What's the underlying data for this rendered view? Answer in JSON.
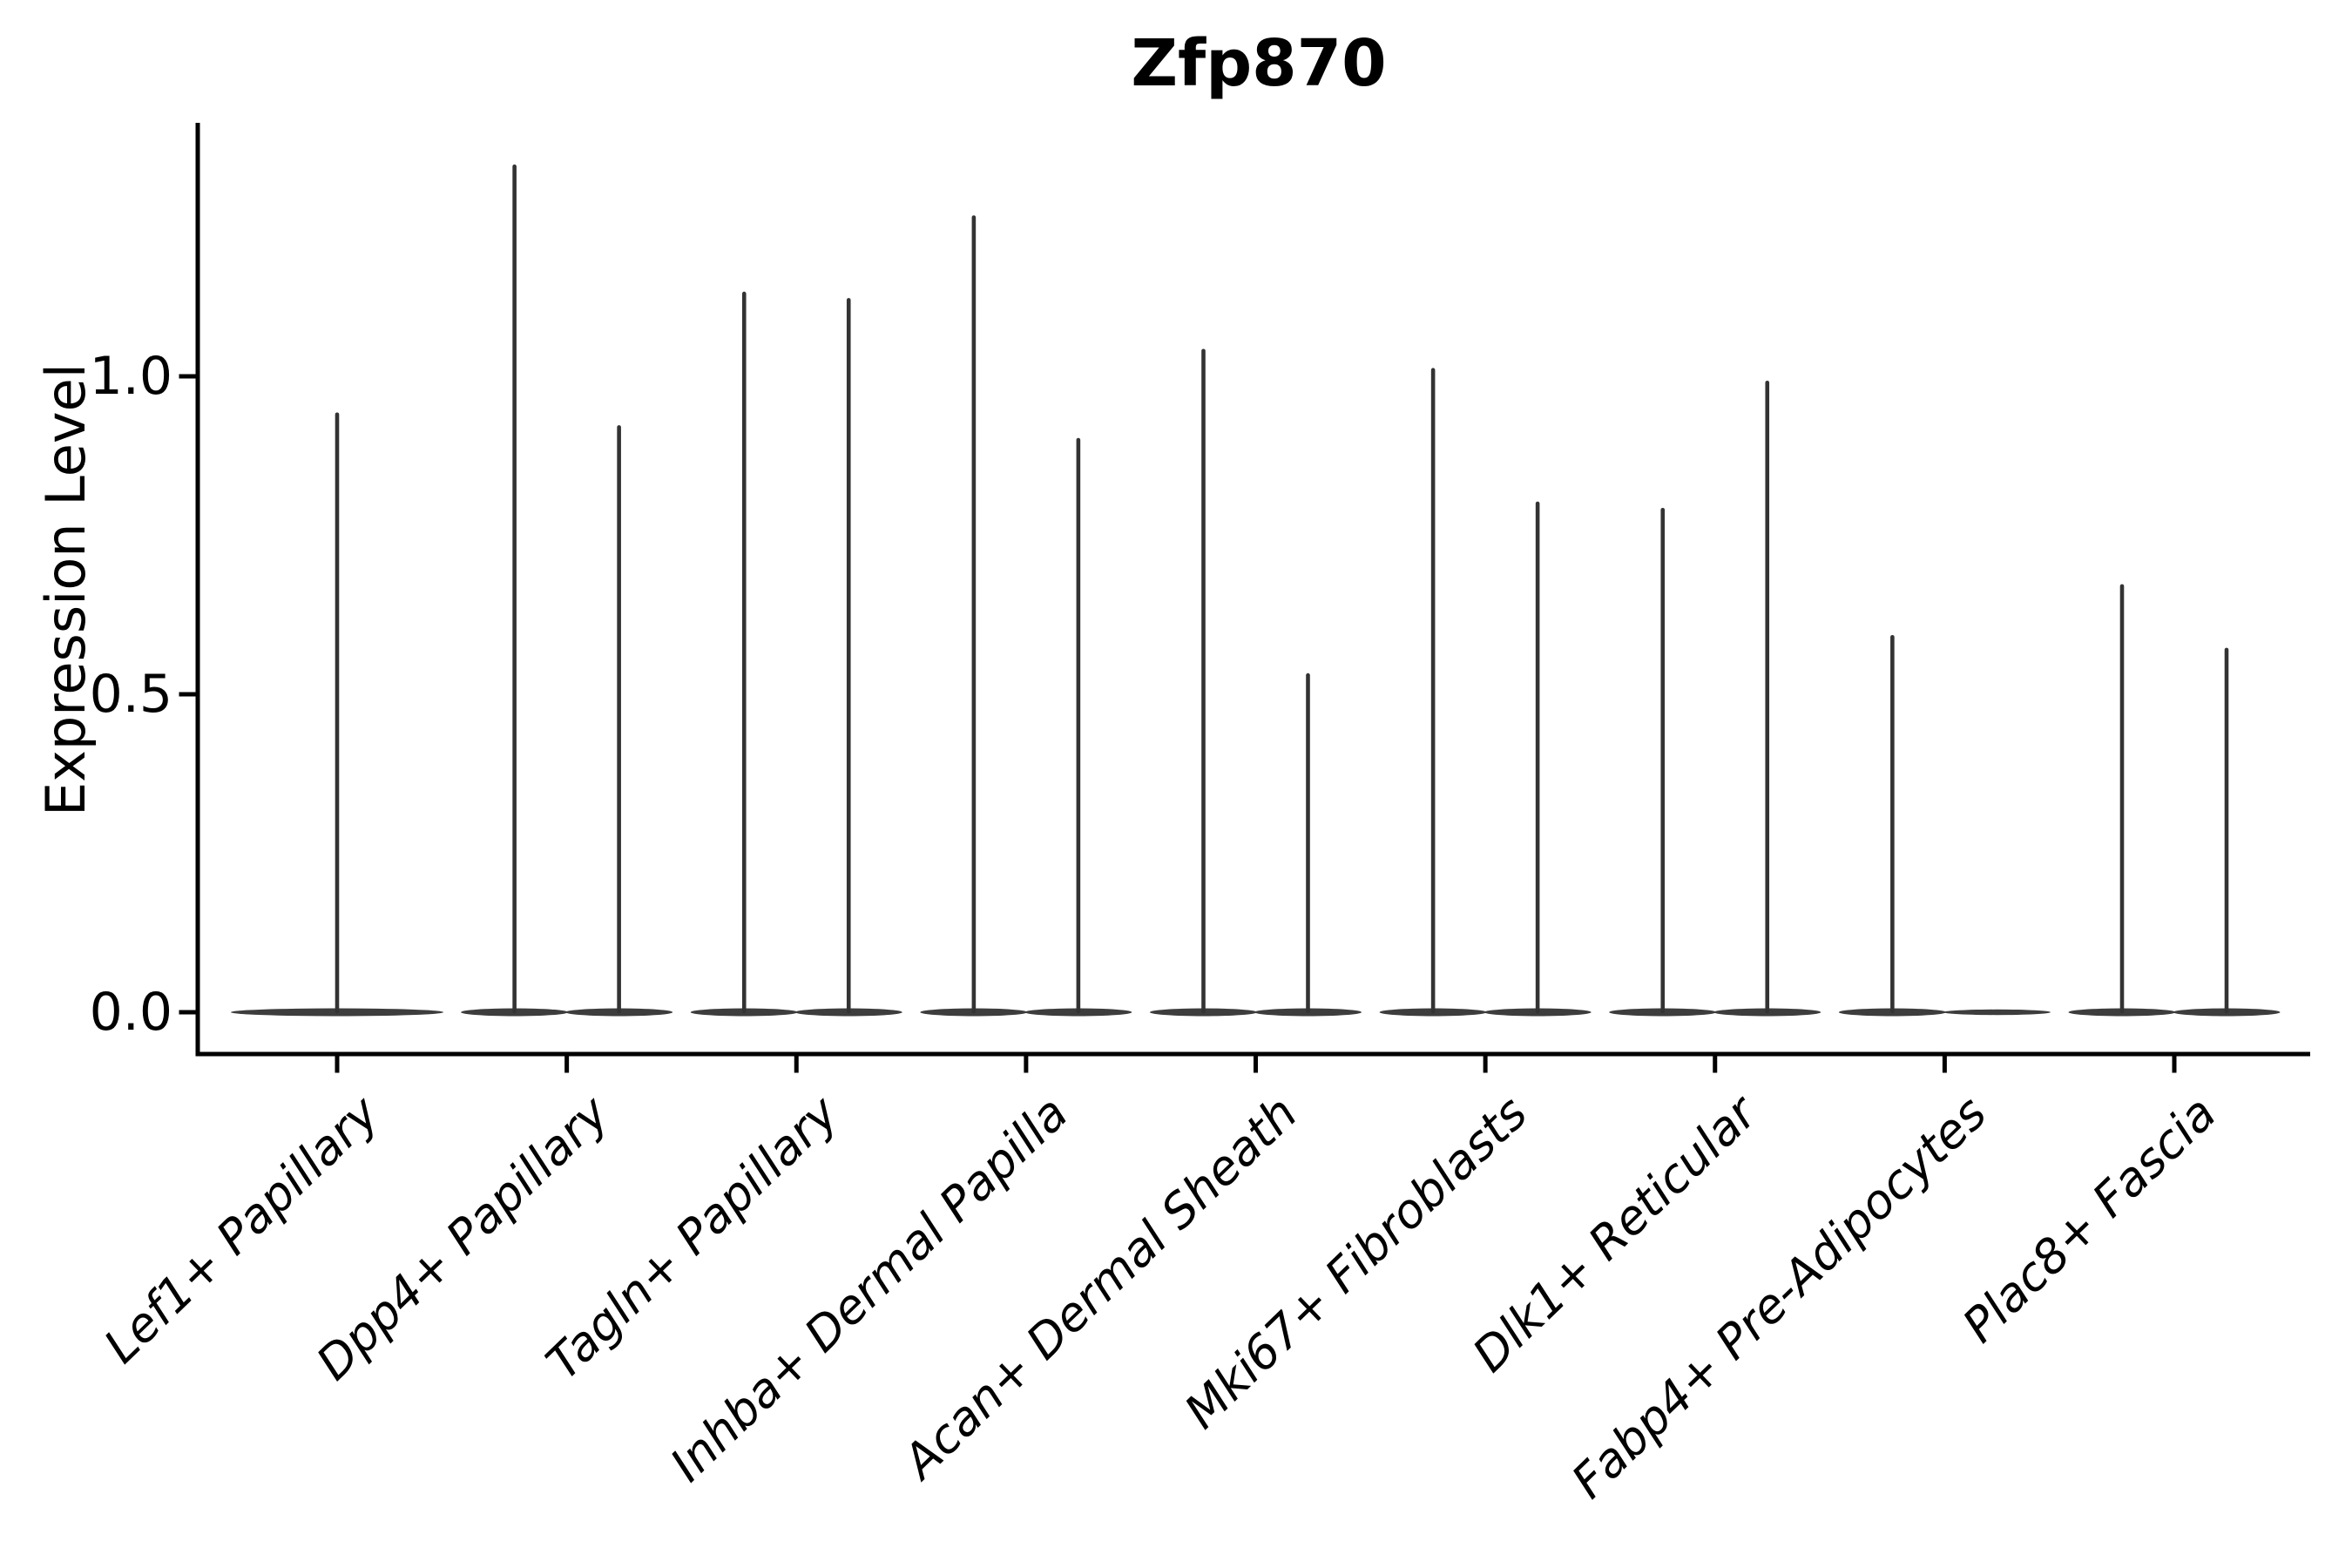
{
  "chart_data": {
    "type": "violin",
    "title": "Zfp870",
    "ylabel": "Expression Level",
    "xlabel": "",
    "yticks": [
      {
        "label": "0.0",
        "value": 0.0
      },
      {
        "label": "0.5",
        "value": 0.5
      },
      {
        "label": "1.0",
        "value": 1.0
      }
    ],
    "ylim": [
      -0.07,
      1.4
    ],
    "grid": false,
    "legend": null,
    "spines_visible": [
      "left",
      "bottom"
    ],
    "x_tick_label_rotation_deg": 44,
    "x_tick_label_style": "italic",
    "categories": [
      "Lef1+ Papillary",
      "Dpp4+ Papillary",
      "Tagln+ Papillary",
      "Inhba+ Dermal Papilla",
      "Acan+ Dermal Sheath",
      "Mki67+ Fibroblasts",
      "Dlk1+ Reticular",
      "Fabp4+ Pre-Adipocytes",
      "Plac8+ Fascia"
    ],
    "violins": [
      {
        "category": "Lef1+ Papillary",
        "spikes": [
          {
            "pos": "center",
            "max": 0.94
          }
        ]
      },
      {
        "category": "Dpp4+ Papillary",
        "spikes": [
          {
            "pos": "left",
            "max": 1.33
          },
          {
            "pos": "right",
            "max": 0.92
          }
        ]
      },
      {
        "category": "Tagln+ Papillary",
        "spikes": [
          {
            "pos": "left",
            "max": 1.13
          },
          {
            "pos": "right",
            "max": 1.12
          }
        ]
      },
      {
        "category": "Inhba+ Dermal Papilla",
        "spikes": [
          {
            "pos": "left",
            "max": 1.25
          },
          {
            "pos": "right",
            "max": 0.9
          }
        ]
      },
      {
        "category": "Acan+ Dermal Sheath",
        "spikes": [
          {
            "pos": "left",
            "max": 1.04
          },
          {
            "pos": "right",
            "max": 0.53
          }
        ]
      },
      {
        "category": "Mki67+ Fibroblasts",
        "spikes": [
          {
            "pos": "left",
            "max": 1.01
          },
          {
            "pos": "right",
            "max": 0.8
          }
        ]
      },
      {
        "category": "Dlk1+ Reticular",
        "spikes": [
          {
            "pos": "left",
            "max": 0.79
          },
          {
            "pos": "right",
            "max": 0.99
          }
        ]
      },
      {
        "category": "Fabp4+ Pre-Adipocytes",
        "spikes": [
          {
            "pos": "left",
            "max": 0.59
          },
          {
            "pos": "right",
            "max": 0.0
          }
        ]
      },
      {
        "category": "Plac8+ Fascia",
        "spikes": [
          {
            "pos": "left",
            "max": 0.67
          },
          {
            "pos": "right",
            "max": 0.57
          }
        ]
      }
    ],
    "colors": {
      "violin": "#333333",
      "violin_base": "#3d3d3d",
      "axis": "#000000",
      "text": "#000000",
      "background": "#ffffff"
    }
  }
}
